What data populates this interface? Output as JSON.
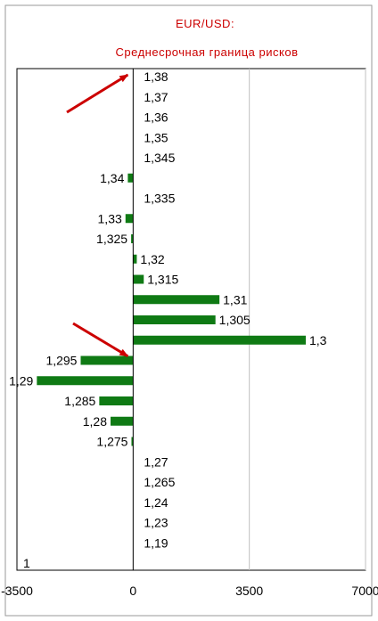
{
  "chart_data": {
    "type": "bar",
    "orientation": "horizontal",
    "title": "EUR/USD:",
    "subtitle": "Среднесрочная граница рисков",
    "xlim": [
      -3500,
      7000
    ],
    "x_ticks": [
      "-3500",
      "0",
      "3500",
      "7000"
    ],
    "x_tick_values": [
      -3500,
      0,
      3500,
      7000
    ],
    "grid": "vertical",
    "categories": [
      "1,38",
      "1,37",
      "1,36",
      "1,35",
      "1,345",
      "1,34",
      "1,335",
      "1,33",
      "1,325",
      "1,32",
      "1,315",
      "1,31",
      "1,305",
      "1,3",
      "1,295",
      "1,29",
      "1,285",
      "1,28",
      "1,275",
      "1,27",
      "1,265",
      "1,24",
      "1,23",
      "1,19",
      "1"
    ],
    "values": [
      0,
      0,
      0,
      0,
      0,
      -160,
      0,
      -230,
      -60,
      110,
      320,
      2600,
      2480,
      5200,
      -1580,
      -2900,
      -1020,
      -680,
      -50,
      0,
      0,
      0,
      0,
      0,
      0
    ],
    "bar_color": "#0f7a14",
    "annotations": [
      {
        "type": "arrow",
        "color": "#cc0000",
        "points_to": "1,38"
      },
      {
        "type": "arrow",
        "color": "#cc0000",
        "points_to": "1,3"
      }
    ]
  }
}
